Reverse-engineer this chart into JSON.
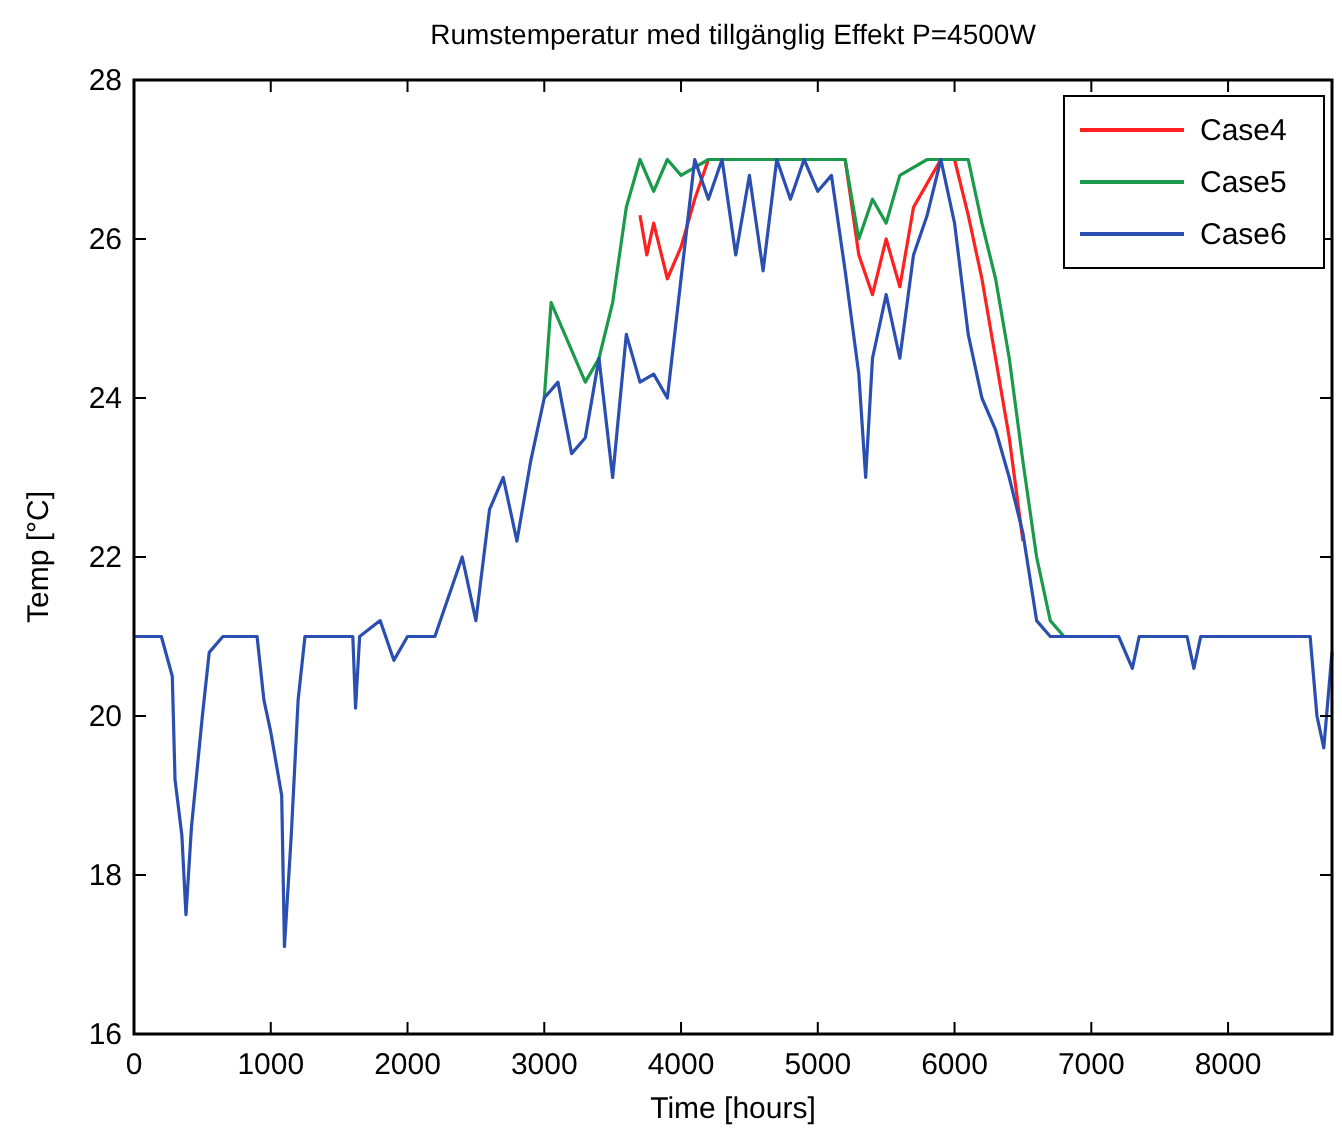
{
  "chart_data": {
    "type": "line",
    "title": "Rumstemperatur med tillgänglig Effekt P=4500W",
    "xlabel": "Time [hours]",
    "ylabel": "Temp [°C]",
    "xlim": [
      0,
      8760
    ],
    "xticks": [
      0,
      1000,
      2000,
      3000,
      4000,
      5000,
      6000,
      7000,
      8000
    ],
    "ylim": [
      16,
      28
    ],
    "yticks": [
      16,
      18,
      20,
      22,
      24,
      26,
      28
    ],
    "grid": false,
    "legend": "top right",
    "marker": "none",
    "line_style": "solid",
    "series": [
      {
        "name": "Case4",
        "color": "#ff2020",
        "x": [
          3700,
          3750,
          3800,
          3900,
          4000,
          4100,
          4200,
          5200,
          5300,
          5400,
          5500,
          5600,
          5700,
          5800,
          5900,
          6000,
          6100,
          6200,
          6300,
          6400,
          6500
        ],
        "values": [
          26.3,
          25.8,
          26.2,
          25.5,
          25.9,
          26.5,
          27,
          27,
          25.8,
          25.3,
          26.0,
          25.4,
          26.4,
          26.7,
          27,
          27,
          26.3,
          25.5,
          24.5,
          23.5,
          22.2
        ]
      },
      {
        "name": "Case5",
        "color": "#1a9a4a",
        "x": [
          3000,
          3050,
          3150,
          3300,
          3400,
          3500,
          3600,
          3700,
          3800,
          3900,
          4000,
          4200,
          5200,
          5300,
          5400,
          5500,
          5600,
          5800,
          6100,
          6200,
          6300,
          6400,
          6500,
          6600,
          6700,
          6800
        ],
        "values": [
          24,
          25.2,
          24.8,
          24.2,
          24.5,
          25.2,
          26.4,
          27,
          26.6,
          27,
          26.8,
          27,
          27,
          26,
          26.5,
          26.2,
          26.8,
          27,
          27,
          26.2,
          25.5,
          24.5,
          23.2,
          22,
          21.2,
          21
        ]
      },
      {
        "name": "Case6",
        "color": "#2a4fb0",
        "x": [
          0,
          200,
          280,
          300,
          350,
          380,
          420,
          500,
          550,
          650,
          900,
          950,
          1000,
          1080,
          1100,
          1150,
          1200,
          1250,
          1600,
          1620,
          1650,
          1800,
          1900,
          2000,
          2200,
          2300,
          2400,
          2500,
          2600,
          2700,
          2800,
          2900,
          3000,
          3100,
          3200,
          3300,
          3400,
          3500,
          3600,
          3700,
          3800,
          3900,
          4000,
          4100,
          4200,
          4300,
          4400,
          4500,
          4600,
          4700,
          4800,
          4900,
          5000,
          5100,
          5200,
          5300,
          5350,
          5400,
          5500,
          5600,
          5700,
          5800,
          5900,
          6000,
          6100,
          6200,
          6300,
          6400,
          6500,
          6600,
          6700,
          7200,
          7300,
          7350,
          7700,
          7750,
          7800,
          8600,
          8650,
          8700,
          8760
        ],
        "values": [
          21,
          21,
          20.5,
          19.2,
          18.5,
          17.5,
          18.6,
          20.0,
          20.8,
          21,
          21,
          20.2,
          19.8,
          19.0,
          17.1,
          18.5,
          20.2,
          21,
          21,
          20.1,
          21,
          21.2,
          20.7,
          21,
          21,
          21.5,
          22,
          21.2,
          22.6,
          23,
          22.2,
          23.2,
          24,
          24.2,
          23.3,
          23.5,
          24.5,
          23,
          24.8,
          24.2,
          24.3,
          24,
          25.5,
          27,
          26.5,
          27,
          25.8,
          26.8,
          25.6,
          27,
          26.5,
          27,
          26.6,
          26.8,
          25.6,
          24.3,
          23,
          24.5,
          25.3,
          24.5,
          25.8,
          26.3,
          27,
          26.2,
          24.8,
          24,
          23.6,
          23,
          22.3,
          21.2,
          21,
          21,
          20.6,
          21,
          21,
          20.6,
          21,
          21,
          20,
          19.6,
          20.8
        ]
      }
    ]
  }
}
